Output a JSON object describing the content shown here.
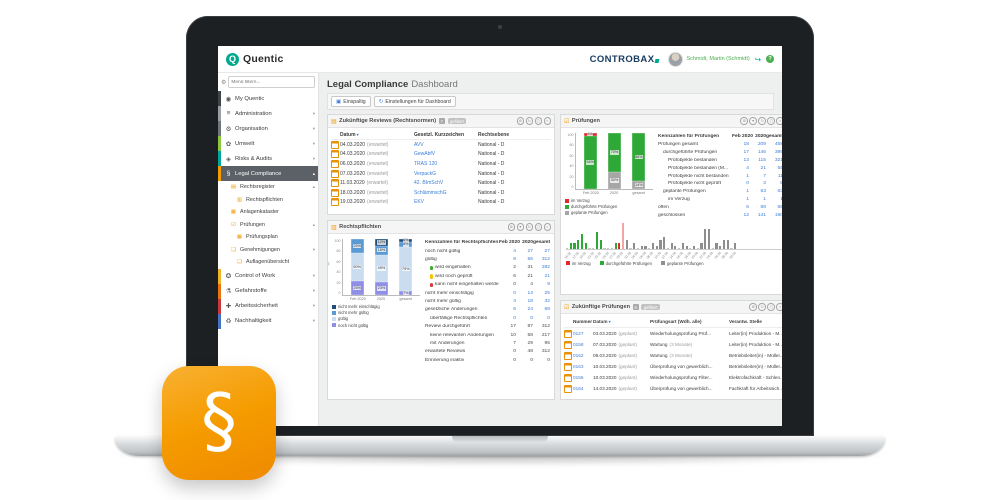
{
  "app": {
    "brand": "Quentic",
    "brand_logo_letter": "Q",
    "customer_logo": "CONTROBAX",
    "user_name": "Schmidt, Martin (Schmidt)",
    "help_glyph": "?",
    "icon_glyph": "§"
  },
  "sidebar": {
    "filter_placeholder": "Menü filtern...",
    "items": [
      {
        "label": "My Quentic",
        "icon": "my-quentic",
        "stripe": "#3f4448"
      },
      {
        "label": "Administration",
        "icon": "administration",
        "stripe": "#9aa0a5",
        "chevron": "v"
      },
      {
        "label": "Organisation",
        "icon": "organisation",
        "stripe": "#6f767c",
        "chevron": "v"
      },
      {
        "label": "Umwelt",
        "icon": "umwelt",
        "stripe": "#8CC63E",
        "chevron": "v"
      },
      {
        "label": "Risks & Audits",
        "icon": "risks-audits",
        "stripe": "#00A69C",
        "chevron": "v"
      },
      {
        "label": "Legal Compliance",
        "icon": "legal-compliance",
        "stripe": "#F59C00",
        "chevron": "^",
        "active": true
      },
      {
        "label": "Rechtsregister",
        "icon": "rechtsregister",
        "level": 1,
        "chevron": "^"
      },
      {
        "label": "Rechtspflichten",
        "icon": "rechtspflichten",
        "level": 2
      },
      {
        "label": "Anlagenkataster",
        "icon": "anlagenkataster",
        "level": 1
      },
      {
        "label": "Prüfungen",
        "icon": "pruefungen",
        "level": 1,
        "chevron": "^"
      },
      {
        "label": "Prüfungsplan",
        "icon": "pruefungsplan",
        "level": 2
      },
      {
        "label": "Genehmigungen",
        "icon": "genehmigungen",
        "level": 1,
        "chevron": "v"
      },
      {
        "label": "Auflagenübersicht",
        "icon": "auflagenuebersicht",
        "level": 2
      },
      {
        "label": "Control of Work",
        "icon": "control-of-work",
        "stripe": "#F0B429",
        "chevron": "v"
      },
      {
        "label": "Gefahrstoffe",
        "icon": "gefahrstoffe",
        "stripe": "#E87511",
        "chevron": "v"
      },
      {
        "label": "Arbeitssicherheit",
        "icon": "arbeitssicherheit",
        "stripe": "#C8373B",
        "chevron": "v"
      },
      {
        "label": "Nachhaltigkeit",
        "icon": "nachhaltigkeit",
        "stripe": "#4472C4",
        "chevron": "v"
      }
    ]
  },
  "header": {
    "title_main": "Legal Compliance",
    "title_sub": "Dashboard",
    "button_layout": "Einspaltig",
    "button_settings": "Einstellungen für Dashboard"
  },
  "panels": {
    "reviews": {
      "title": "Zukünftige Reviews (Rechtsnormen)",
      "badge": "7",
      "tag": "gefiltert",
      "columns": [
        "Datum",
        "Gesetzl. Kurzzeichen",
        "Rechtsebene"
      ],
      "rows": [
        {
          "date": "04.03.2020",
          "status": "(erwartet)",
          "code": "AVV",
          "level": "National - D"
        },
        {
          "date": "04.03.2020",
          "status": "(erwartet)",
          "code": "GewAbfV",
          "level": "National - D"
        },
        {
          "date": "06.03.2020",
          "status": "(erwartet)",
          "code": "TRAS 120",
          "level": "National - D"
        },
        {
          "date": "07.03.2020",
          "status": "(erwartet)",
          "code": "VerpackG",
          "level": "National - D"
        },
        {
          "date": "11.03.2020",
          "status": "(erwartet)",
          "code": "42. BImSchV",
          "level": "National - D"
        },
        {
          "date": "18.03.2020",
          "status": "(erwartet)",
          "code": "SchlämmschG",
          "level": "National - D"
        },
        {
          "date": "19.03.2020",
          "status": "(erwartet)",
          "code": "EKV",
          "level": "National - D"
        }
      ]
    },
    "rechtspflichten": {
      "title": "Rechtspflichten",
      "table": {
        "header": [
          "Kennzahlen für Rechtspflichten",
          "Feb 2020",
          "2020",
          "gesamt"
        ],
        "rows": [
          {
            "label": "noch nicht gültig",
            "values": [
              "4",
              "27",
              "27"
            ],
            "indent": 0,
            "link": true
          },
          {
            "label": "gültig",
            "values": [
              "8",
              "56",
              "312"
            ],
            "indent": 0,
            "link": true
          },
          {
            "label": "wird eingehalten",
            "values": [
              "2",
              "31",
              "282"
            ],
            "indent": 1,
            "pin": "#3DAE2B",
            "link": false,
            "last_link": true
          },
          {
            "label": "wird noch geprüft",
            "values": [
              "6",
              "21",
              "21"
            ],
            "indent": 1,
            "pin": "#F5C400",
            "link": false,
            "last_link": true
          },
          {
            "label": "kann nicht eingehalten werden",
            "values": [
              "0",
              "4",
              "9"
            ],
            "indent": 1,
            "pin": "#D93A3A",
            "link": false,
            "last_link": true
          },
          {
            "label": "nicht mehr einschlägig",
            "values": [
              "0",
              "14",
              "25"
            ],
            "indent": 0,
            "link": true
          },
          {
            "label": "nicht mehr gültig",
            "values": [
              "4",
              "18",
              "32"
            ],
            "indent": 0,
            "link": true
          },
          {
            "label": "gesetzliche Änderungen",
            "values": [
              "6",
              "24",
              "68"
            ],
            "indent": 0,
            "link": true
          },
          {
            "label": "überfällige Rechtspflichten",
            "values": [
              "0",
              "0",
              "0"
            ],
            "indent": 1,
            "link": true
          },
          {
            "label": "Review durchgeführt",
            "values": [
              "17",
              "87",
              "312"
            ],
            "indent": 0,
            "link": false
          },
          {
            "label": "keine relevanten Änderungen",
            "values": [
              "10",
              "58",
              "217"
            ],
            "indent": 1,
            "link": false
          },
          {
            "label": "mit Änderungen",
            "values": [
              "7",
              "29",
              "95"
            ],
            "indent": 1,
            "link": false
          },
          {
            "label": "erwartete Reviews",
            "values": [
              "0",
              "48",
              "312"
            ],
            "indent": 0,
            "link": false
          },
          {
            "label": "Erinnerung inaktiv",
            "values": [
              "0",
              "0",
              "0"
            ],
            "indent": 0,
            "link": false
          }
        ]
      }
    },
    "pruefungen": {
      "title": "Prüfungen",
      "table": {
        "header": [
          "Kennzahlen für Prüfungen",
          "Feb 2020",
          "2020",
          "gesamt"
        ],
        "rows": [
          {
            "label": "Prüfungen gesamt",
            "values": [
              "18",
              "209",
              "458"
            ],
            "indent": 0,
            "link": true
          },
          {
            "label": "durchgeführte Prüfungen",
            "values": [
              "17",
              "146",
              "395"
            ],
            "indent": 1,
            "link": true
          },
          {
            "label": "Prüfobjekte bestanden",
            "values": [
              "13",
              "115",
              "321"
            ],
            "indent": 2,
            "link": true
          },
          {
            "label": "Prüfobjekte bestanden (M...",
            "values": [
              "4",
              "21",
              "55"
            ],
            "indent": 2,
            "link": true
          },
          {
            "label": "Prüfobjekte nicht bestanden",
            "values": [
              "1",
              "7",
              "11"
            ],
            "indent": 2,
            "link": true
          },
          {
            "label": "Prüfobjekte nicht geprüft",
            "values": [
              "0",
              "3",
              "8"
            ],
            "indent": 2,
            "link": true
          },
          {
            "label": "geplante Prüfungen",
            "values": [
              "1",
              "63",
              "63"
            ],
            "indent": 1,
            "link": true
          },
          {
            "label": "im Verzug",
            "values": [
              "1",
              "1",
              "1"
            ],
            "indent": 2,
            "link": true
          },
          {
            "label": "offen",
            "values": [
              "6",
              "68",
              "68"
            ],
            "indent": 0,
            "link": true
          },
          {
            "label": "geschlossen",
            "values": [
              "12",
              "141",
              "190"
            ],
            "indent": 0,
            "link": true
          }
        ]
      }
    },
    "future_pruefungen": {
      "title": "Zukünftige Prüfungen",
      "badge": "6",
      "tag": "gefiltert",
      "columns": [
        "Nummer",
        "Datum",
        "Prüfungsart (Wdh. alle)",
        "Verantw. Stelle"
      ],
      "rows": [
        {
          "num": "0127",
          "date": "03.03.2020",
          "status": "(geplant)",
          "art": "Wiederholungsprüfung Prüf...",
          "stelle": "Leiter(in) Produktion - M..."
        },
        {
          "num": "0158",
          "date": "07.03.2020",
          "status": "(geplant)",
          "art": "Wartung",
          "art_sub": "(3 Monate)",
          "stelle": "Leiter(in) Produktion - M..."
        },
        {
          "num": "0162",
          "date": "09.03.2020",
          "status": "(geplant)",
          "art": "Wartung",
          "art_sub": "(3 Monate)",
          "stelle": "Betriebsleiter(in) - Müller..."
        },
        {
          "num": "0163",
          "date": "10.03.2020",
          "status": "(geplant)",
          "art": "Überprüfung von gewerblich...",
          "stelle": "Betriebsleiter(in) - Müller..."
        },
        {
          "num": "0156",
          "date": "10.03.2020",
          "status": "(geplant)",
          "art": "Wiederholungsprüfung Filter...",
          "stelle": "Elektrofachkraft - Schlen..."
        },
        {
          "num": "0164",
          "date": "14.03.2020",
          "status": "(geplant)",
          "art": "Überprüfung von gewerblich...",
          "stelle": "Fachkraft für Arbeitssich..."
        }
      ]
    }
  },
  "chart_data": [
    {
      "type": "bar",
      "stacked": true,
      "title": "Rechtspflichten Statusverteilung",
      "categories": [
        "Feb 2020",
        "2020",
        "gesamt"
      ],
      "ylabel": "%",
      "ylim": [
        0,
        100
      ],
      "grid": false,
      "legend_position": "bottom-left",
      "series": [
        {
          "name": "nicht mehr einschlägig",
          "color": "#1F4E79",
          "values": [
            0,
            12,
            6
          ]
        },
        {
          "name": "nicht mehr gültig",
          "color": "#5B9BD5",
          "values": [
            25,
            16,
            8
          ]
        },
        {
          "name": "gültig",
          "color": "#C9DCF0",
          "values": [
            50,
            49,
            79
          ]
        },
        {
          "name": "noch nicht gültig",
          "color": "#8F8FE8",
          "values": [
            25,
            23,
            7
          ]
        }
      ]
    },
    {
      "type": "bar",
      "stacked": true,
      "title": "Prüfungen Statusverteilung",
      "categories": [
        "Feb 2020",
        "2020",
        "gesamt"
      ],
      "ylabel": "",
      "ylim": [
        0,
        100
      ],
      "grid": false,
      "legend_position": "bottom-left",
      "series": [
        {
          "name": "im Verzug",
          "color": "#E02B2B",
          "values": [
            6,
            0,
            0
          ]
        },
        {
          "name": "durchgeführte Prüfungen",
          "color": "#2EA836",
          "values": [
            94,
            70,
            86
          ]
        },
        {
          "name": "geplante Prüfungen",
          "color": "#A6A6A6",
          "values": [
            0,
            30,
            14
          ]
        }
      ]
    },
    {
      "type": "bar",
      "title": "Prüfungen im Zeitverlauf",
      "ylim": [
        0,
        10
      ],
      "x_labels": [
        "15.02",
        "17.02",
        "19.02",
        "21.02",
        "23.02",
        "25.02",
        "27.02",
        "29.02",
        "02.03",
        "04.03",
        "06.03",
        "08.03",
        "10.03",
        "12.03",
        "14.03",
        "16.03",
        "18.03",
        "20.03",
        "22.03",
        "24.03",
        "26.03",
        "28.03",
        "30.03"
      ],
      "legend": [
        {
          "name": "im Verzug",
          "color": "#E02B2B"
        },
        {
          "name": "durchgeführte Prüfungen",
          "color": "#2EA836"
        },
        {
          "name": "geplante Prüfungen",
          "color": "#8E8E8E"
        }
      ],
      "bars": [
        {
          "v": 0,
          "c": "s"
        },
        {
          "v": 2,
          "c": "g"
        },
        {
          "v": 2,
          "c": "g"
        },
        {
          "v": 3,
          "c": "g"
        },
        {
          "v": 5,
          "c": "g"
        },
        {
          "v": 2,
          "c": "g"
        },
        {
          "v": 0,
          "c": "s"
        },
        {
          "v": 0,
          "c": "s"
        },
        {
          "v": 6,
          "c": "g"
        },
        {
          "v": 3,
          "c": "g"
        },
        {
          "v": 0,
          "c": "s"
        },
        {
          "v": 0,
          "c": "s"
        },
        {
          "v": 0,
          "c": "s"
        },
        {
          "v": 2,
          "c": "g"
        },
        {
          "v": 2,
          "c": "r"
        },
        {
          "v": 9,
          "c": "p"
        },
        {
          "v": 3,
          "c": "x"
        },
        {
          "v": 0,
          "c": "s"
        },
        {
          "v": 2,
          "c": "x"
        },
        {
          "v": 0,
          "c": "s"
        },
        {
          "v": 1,
          "c": "x"
        },
        {
          "v": 1,
          "c": "x"
        },
        {
          "v": 0,
          "c": "s"
        },
        {
          "v": 2,
          "c": "x"
        },
        {
          "v": 1,
          "c": "x"
        },
        {
          "v": 3,
          "c": "x"
        },
        {
          "v": 4,
          "c": "x"
        },
        {
          "v": 0,
          "c": "s"
        },
        {
          "v": 2,
          "c": "x"
        },
        {
          "v": 1,
          "c": "x"
        },
        {
          "v": 0,
          "c": "s"
        },
        {
          "v": 2,
          "c": "x"
        },
        {
          "v": 1,
          "c": "x"
        },
        {
          "v": 0,
          "c": "s"
        },
        {
          "v": 1,
          "c": "x"
        },
        {
          "v": 0,
          "c": "s"
        },
        {
          "v": 2,
          "c": "x"
        },
        {
          "v": 7,
          "c": "x"
        },
        {
          "v": 7,
          "c": "x"
        },
        {
          "v": 0,
          "c": "s"
        },
        {
          "v": 2,
          "c": "x"
        },
        {
          "v": 1,
          "c": "x"
        },
        {
          "v": 3,
          "c": "x"
        },
        {
          "v": 3,
          "c": "x"
        },
        {
          "v": 0,
          "c": "s"
        },
        {
          "v": 2,
          "c": "x"
        }
      ]
    }
  ]
}
